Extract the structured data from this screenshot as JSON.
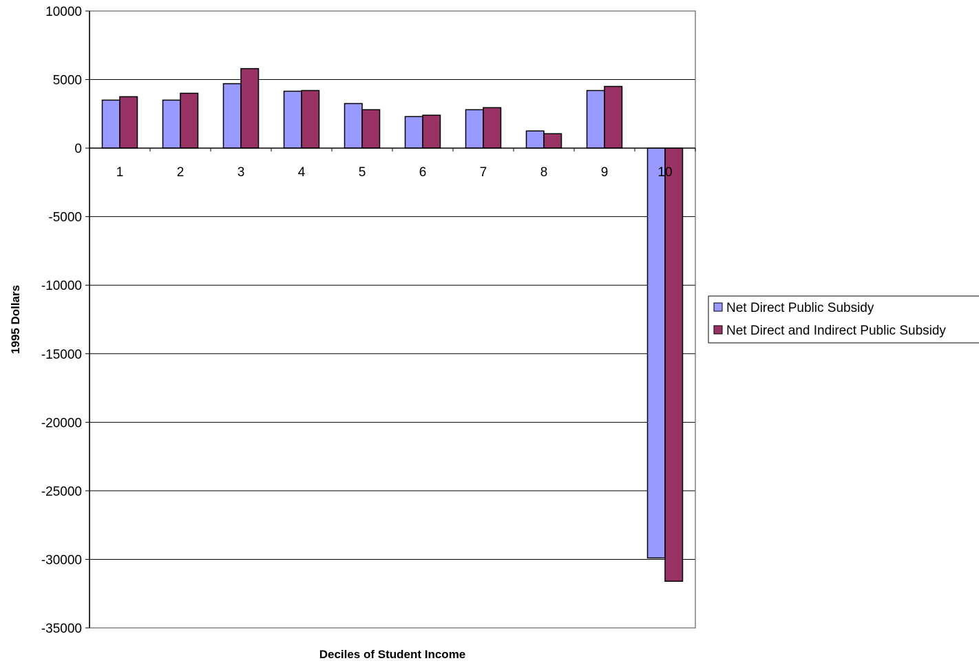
{
  "chart_data": {
    "type": "bar",
    "title": "",
    "xlabel": "Deciles of Student Income",
    "ylabel": "1995 Dollars",
    "categories": [
      "1",
      "2",
      "3",
      "4",
      "5",
      "6",
      "7",
      "8",
      "9",
      "10"
    ],
    "ylim": [
      -35000,
      10000
    ],
    "yticks": [
      10000,
      5000,
      0,
      -5000,
      -10000,
      -15000,
      -20000,
      -25000,
      -30000,
      -35000
    ],
    "ytick_labels": [
      "10000",
      "5000",
      "0",
      "-5000",
      "-10000",
      "-15000",
      "-20000",
      "-25000",
      "-30000",
      "-35000"
    ],
    "grid": true,
    "legend_position": "right",
    "series": [
      {
        "name": "Net Direct Public Subsidy",
        "color": "#9999FF",
        "values": [
          3500,
          3500,
          4700,
          4150,
          3250,
          2300,
          2800,
          1250,
          4200,
          -29900
        ]
      },
      {
        "name": "Net Direct and Indirect Public Subsidy",
        "color": "#993366",
        "values": [
          3750,
          4000,
          5800,
          4200,
          2800,
          2400,
          2950,
          1050,
          4500,
          -31600
        ]
      }
    ]
  }
}
